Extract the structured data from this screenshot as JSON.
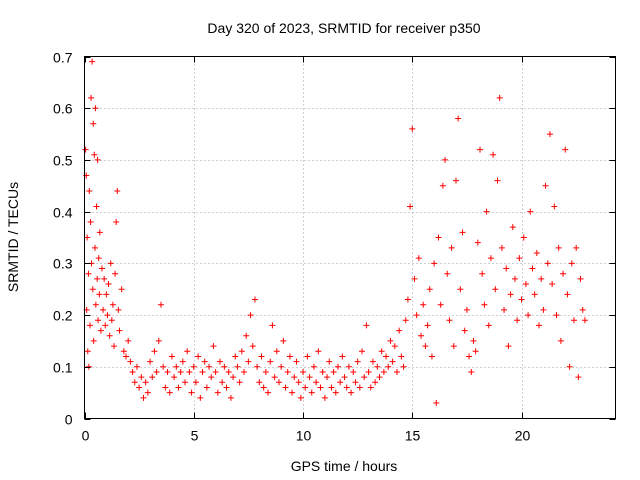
{
  "chart_data": {
    "type": "scatter",
    "title": "Day 320 of 2023, SRMTID for receiver p350",
    "xlabel": "GPS time / hours",
    "ylabel": "SRMTID / TECUs",
    "xlim": [
      0,
      24.3
    ],
    "ylim": [
      0,
      0.7
    ],
    "x_ticks": [
      0,
      5,
      10,
      15,
      20
    ],
    "x_tick_labels": [
      "0",
      "5",
      "10",
      "15",
      "20"
    ],
    "y_ticks": [
      0,
      0.1,
      0.2,
      0.3,
      0.4,
      0.5,
      0.6,
      0.7
    ],
    "y_tick_labels": [
      "0",
      "0.1",
      "0.2",
      "0.3",
      "0.4",
      "0.5",
      "0.6",
      "0.7"
    ],
    "grid": true,
    "marker": "plus",
    "series": [
      {
        "name": "SRMTID",
        "color": "#ff0000",
        "points": [
          [
            0.05,
            0.52
          ],
          [
            0.08,
            0.47
          ],
          [
            0.1,
            0.21
          ],
          [
            0.12,
            0.35
          ],
          [
            0.15,
            0.13
          ],
          [
            0.18,
            0.28
          ],
          [
            0.2,
            0.1
          ],
          [
            0.22,
            0.44
          ],
          [
            0.25,
            0.18
          ],
          [
            0.28,
            0.38
          ],
          [
            0.3,
            0.62
          ],
          [
            0.32,
            0.3
          ],
          [
            0.35,
            0.69
          ],
          [
            0.38,
            0.25
          ],
          [
            0.4,
            0.57
          ],
          [
            0.42,
            0.15
          ],
          [
            0.45,
            0.51
          ],
          [
            0.48,
            0.33
          ],
          [
            0.5,
            0.6
          ],
          [
            0.52,
            0.22
          ],
          [
            0.55,
            0.41
          ],
          [
            0.58,
            0.27
          ],
          [
            0.6,
            0.5
          ],
          [
            0.62,
            0.19
          ],
          [
            0.65,
            0.31
          ],
          [
            0.68,
            0.24
          ],
          [
            0.7,
            0.36
          ],
          [
            0.75,
            0.17
          ],
          [
            0.8,
            0.29
          ],
          [
            0.85,
            0.21
          ],
          [
            0.9,
            0.27
          ],
          [
            0.95,
            0.18
          ],
          [
            1.0,
            0.24
          ],
          [
            1.05,
            0.2
          ],
          [
            1.1,
            0.26
          ],
          [
            1.15,
            0.16
          ],
          [
            1.2,
            0.3
          ],
          [
            1.25,
            0.19
          ],
          [
            1.3,
            0.22
          ],
          [
            1.35,
            0.14
          ],
          [
            1.4,
            0.28
          ],
          [
            1.45,
            0.38
          ],
          [
            1.5,
            0.44
          ],
          [
            1.55,
            0.21
          ],
          [
            1.6,
            0.17
          ],
          [
            1.7,
            0.25
          ],
          [
            1.8,
            0.13
          ],
          [
            1.9,
            0.12
          ],
          [
            2.0,
            0.15
          ],
          [
            2.1,
            0.11
          ],
          [
            2.2,
            0.09
          ],
          [
            2.3,
            0.07
          ],
          [
            2.4,
            0.1
          ],
          [
            2.5,
            0.06
          ],
          [
            2.6,
            0.08
          ],
          [
            2.7,
            0.04
          ],
          [
            2.8,
            0.07
          ],
          [
            2.9,
            0.05
          ],
          [
            3.0,
            0.11
          ],
          [
            3.1,
            0.08
          ],
          [
            3.2,
            0.13
          ],
          [
            3.3,
            0.09
          ],
          [
            3.4,
            0.15
          ],
          [
            3.5,
            0.22
          ],
          [
            3.6,
            0.1
          ],
          [
            3.7,
            0.06
          ],
          [
            3.8,
            0.09
          ],
          [
            3.9,
            0.05
          ],
          [
            4.0,
            0.12
          ],
          [
            4.1,
            0.08
          ],
          [
            4.2,
            0.1
          ],
          [
            4.3,
            0.06
          ],
          [
            4.4,
            0.09
          ],
          [
            4.5,
            0.11
          ],
          [
            4.6,
            0.07
          ],
          [
            4.7,
            0.13
          ],
          [
            4.8,
            0.09
          ],
          [
            4.9,
            0.05
          ],
          [
            5.0,
            0.1
          ],
          [
            5.1,
            0.07
          ],
          [
            5.2,
            0.12
          ],
          [
            5.3,
            0.04
          ],
          [
            5.4,
            0.09
          ],
          [
            5.5,
            0.11
          ],
          [
            5.6,
            0.06
          ],
          [
            5.7,
            0.1
          ],
          [
            5.8,
            0.08
          ],
          [
            5.9,
            0.14
          ],
          [
            6.0,
            0.09
          ],
          [
            6.1,
            0.05
          ],
          [
            6.2,
            0.11
          ],
          [
            6.3,
            0.07
          ],
          [
            6.4,
            0.1
          ],
          [
            6.5,
            0.06
          ],
          [
            6.6,
            0.09
          ],
          [
            6.7,
            0.04
          ],
          [
            6.8,
            0.08
          ],
          [
            6.9,
            0.12
          ],
          [
            7.0,
            0.1
          ],
          [
            7.1,
            0.07
          ],
          [
            7.2,
            0.13
          ],
          [
            7.3,
            0.09
          ],
          [
            7.4,
            0.16
          ],
          [
            7.5,
            0.11
          ],
          [
            7.6,
            0.2
          ],
          [
            7.7,
            0.14
          ],
          [
            7.8,
            0.23
          ],
          [
            7.9,
            0.1
          ],
          [
            8.0,
            0.07
          ],
          [
            8.1,
            0.12
          ],
          [
            8.2,
            0.06
          ],
          [
            8.3,
            0.09
          ],
          [
            8.4,
            0.05
          ],
          [
            8.5,
            0.11
          ],
          [
            8.6,
            0.18
          ],
          [
            8.7,
            0.08
          ],
          [
            8.8,
            0.13
          ],
          [
            8.9,
            0.07
          ],
          [
            9.0,
            0.1
          ],
          [
            9.1,
            0.15
          ],
          [
            9.2,
            0.06
          ],
          [
            9.3,
            0.09
          ],
          [
            9.4,
            0.12
          ],
          [
            9.5,
            0.05
          ],
          [
            9.6,
            0.08
          ],
          [
            9.7,
            0.11
          ],
          [
            9.8,
            0.07
          ],
          [
            9.9,
            0.04
          ],
          [
            10.0,
            0.09
          ],
          [
            10.1,
            0.06
          ],
          [
            10.2,
            0.12
          ],
          [
            10.3,
            0.08
          ],
          [
            10.4,
            0.05
          ],
          [
            10.5,
            0.1
          ],
          [
            10.6,
            0.07
          ],
          [
            10.7,
            0.13
          ],
          [
            10.8,
            0.06
          ],
          [
            10.9,
            0.09
          ],
          [
            11.0,
            0.04
          ],
          [
            11.1,
            0.08
          ],
          [
            11.2,
            0.11
          ],
          [
            11.3,
            0.06
          ],
          [
            11.4,
            0.09
          ],
          [
            11.5,
            0.05
          ],
          [
            11.6,
            0.1
          ],
          [
            11.7,
            0.07
          ],
          [
            11.8,
            0.12
          ],
          [
            11.9,
            0.08
          ],
          [
            12.0,
            0.06
          ],
          [
            12.1,
            0.1
          ],
          [
            12.2,
            0.05
          ],
          [
            12.3,
            0.09
          ],
          [
            12.4,
            0.07
          ],
          [
            12.5,
            0.11
          ],
          [
            12.6,
            0.06
          ],
          [
            12.7,
            0.13
          ],
          [
            12.8,
            0.08
          ],
          [
            12.9,
            0.18
          ],
          [
            13.0,
            0.09
          ],
          [
            13.1,
            0.06
          ],
          [
            13.2,
            0.11
          ],
          [
            13.3,
            0.07
          ],
          [
            13.4,
            0.1
          ],
          [
            13.5,
            0.08
          ],
          [
            13.6,
            0.13
          ],
          [
            13.7,
            0.09
          ],
          [
            13.8,
            0.12
          ],
          [
            13.9,
            0.1
          ],
          [
            14.0,
            0.15
          ],
          [
            14.1,
            0.11
          ],
          [
            14.2,
            0.14
          ],
          [
            14.3,
            0.09
          ],
          [
            14.4,
            0.17
          ],
          [
            14.5,
            0.12
          ],
          [
            14.6,
            0.1
          ],
          [
            14.7,
            0.19
          ],
          [
            14.8,
            0.23
          ],
          [
            14.9,
            0.41
          ],
          [
            15.0,
            0.56
          ],
          [
            15.1,
            0.27
          ],
          [
            15.2,
            0.2
          ],
          [
            15.3,
            0.31
          ],
          [
            15.4,
            0.16
          ],
          [
            15.5,
            0.22
          ],
          [
            15.6,
            0.14
          ],
          [
            15.7,
            0.18
          ],
          [
            15.8,
            0.25
          ],
          [
            15.9,
            0.12
          ],
          [
            16.0,
            0.3
          ],
          [
            16.1,
            0.03
          ],
          [
            16.2,
            0.35
          ],
          [
            16.3,
            0.22
          ],
          [
            16.4,
            0.45
          ],
          [
            16.5,
            0.5
          ],
          [
            16.6,
            0.28
          ],
          [
            16.7,
            0.19
          ],
          [
            16.8,
            0.33
          ],
          [
            16.9,
            0.14
          ],
          [
            17.0,
            0.46
          ],
          [
            17.1,
            0.58
          ],
          [
            17.2,
            0.25
          ],
          [
            17.3,
            0.36
          ],
          [
            17.4,
            0.17
          ],
          [
            17.5,
            0.21
          ],
          [
            17.6,
            0.12
          ],
          [
            17.7,
            0.09
          ],
          [
            17.8,
            0.15
          ],
          [
            17.9,
            0.13
          ],
          [
            18.0,
            0.34
          ],
          [
            18.1,
            0.52
          ],
          [
            18.2,
            0.28
          ],
          [
            18.3,
            0.22
          ],
          [
            18.4,
            0.4
          ],
          [
            18.5,
            0.18
          ],
          [
            18.6,
            0.31
          ],
          [
            18.7,
            0.51
          ],
          [
            18.8,
            0.25
          ],
          [
            18.9,
            0.46
          ],
          [
            19.0,
            0.62
          ],
          [
            19.1,
            0.33
          ],
          [
            19.2,
            0.21
          ],
          [
            19.3,
            0.29
          ],
          [
            19.4,
            0.14
          ],
          [
            19.5,
            0.24
          ],
          [
            19.6,
            0.37
          ],
          [
            19.7,
            0.27
          ],
          [
            19.8,
            0.19
          ],
          [
            19.9,
            0.31
          ],
          [
            20.0,
            0.23
          ],
          [
            20.1,
            0.35
          ],
          [
            20.2,
            0.26
          ],
          [
            20.3,
            0.2
          ],
          [
            20.4,
            0.4
          ],
          [
            20.5,
            0.29
          ],
          [
            20.6,
            0.24
          ],
          [
            20.7,
            0.32
          ],
          [
            20.8,
            0.18
          ],
          [
            20.9,
            0.27
          ],
          [
            21.0,
            0.21
          ],
          [
            21.1,
            0.45
          ],
          [
            21.2,
            0.3
          ],
          [
            21.3,
            0.55
          ],
          [
            21.4,
            0.26
          ],
          [
            21.5,
            0.41
          ],
          [
            21.6,
            0.2
          ],
          [
            21.7,
            0.33
          ],
          [
            21.8,
            0.15
          ],
          [
            21.9,
            0.28
          ],
          [
            22.0,
            0.52
          ],
          [
            22.1,
            0.24
          ],
          [
            22.2,
            0.1
          ],
          [
            22.3,
            0.3
          ],
          [
            22.4,
            0.19
          ],
          [
            22.5,
            0.33
          ],
          [
            22.6,
            0.08
          ],
          [
            22.7,
            0.27
          ],
          [
            22.8,
            0.21
          ],
          [
            22.9,
            0.19
          ]
        ]
      }
    ]
  }
}
